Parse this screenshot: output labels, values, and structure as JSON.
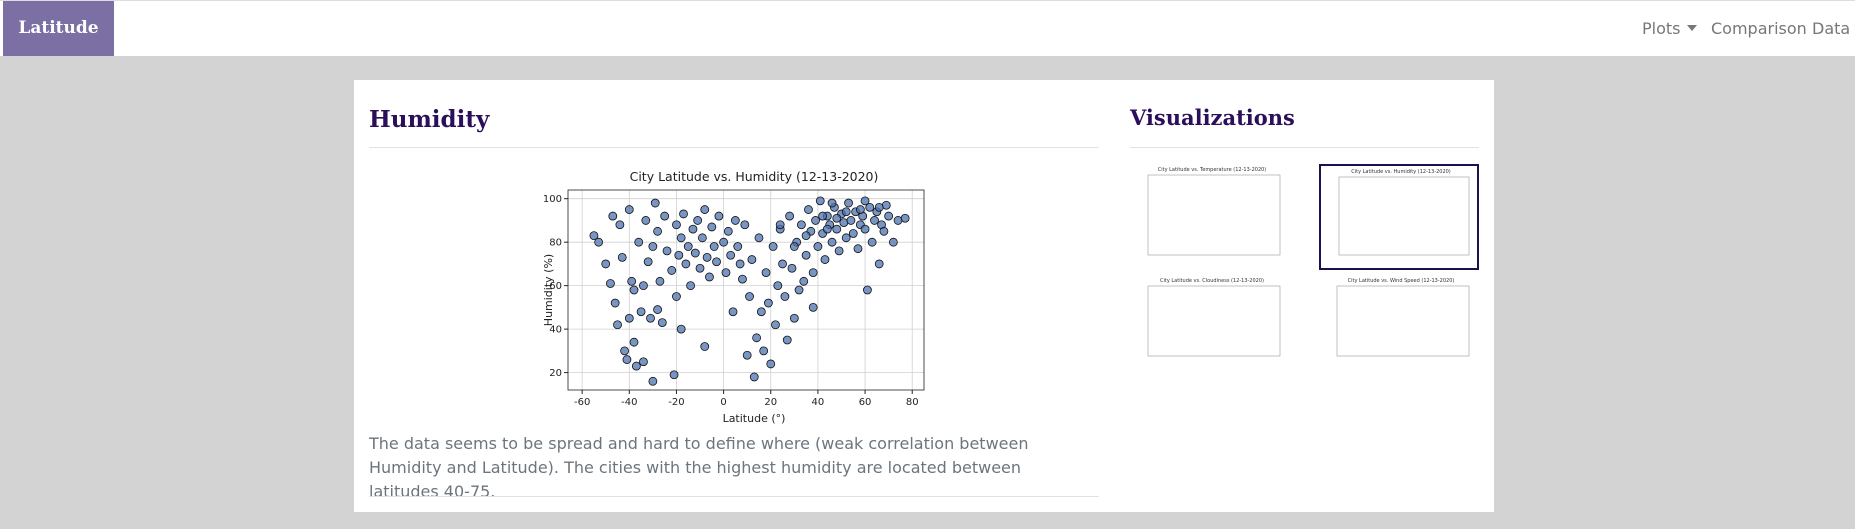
{
  "navbar": {
    "brand": "Latitude",
    "links": [
      "Plots",
      "Comparison",
      "Data"
    ]
  },
  "content": {
    "title": "Humidity",
    "description": "The data seems to be spread and hard to define where (weak correlation between Humidity and Latitude). The cities with the highest humidity are located between latitudes 40-75."
  },
  "chart_data": {
    "type": "scatter",
    "title": "City Latitude vs. Humidity (12-13-2020)",
    "x_label": "Latitude (°)",
    "y_label": "Humidity (%)",
    "color": "#4c72b0",
    "grid": true,
    "xlim": [
      -66,
      85
    ],
    "ylim": [
      12,
      104
    ],
    "xticks": [
      -60,
      -40,
      -20,
      0,
      20,
      40,
      60,
      80
    ],
    "yticks": [
      20,
      40,
      60,
      80,
      100
    ],
    "x": [
      -55,
      -53,
      -50,
      -48,
      -46,
      -45,
      -44,
      -43,
      -42,
      -41,
      -40,
      -40,
      -39,
      -38,
      -37,
      -36,
      -35,
      -34,
      -34,
      -33,
      -32,
      -31,
      -30,
      -30,
      -29,
      -28,
      -27,
      -26,
      -25,
      -24,
      -22,
      -21,
      -20,
      -20,
      -19,
      -18,
      -17,
      -16,
      -15,
      -14,
      -13,
      -12,
      -11,
      -10,
      -9,
      -8,
      -7,
      -6,
      -5,
      -4,
      -3,
      -2,
      0,
      1,
      2,
      3,
      4,
      5,
      6,
      7,
      8,
      9,
      10,
      11,
      12,
      13,
      14,
      15,
      16,
      17,
      18,
      19,
      20,
      21,
      22,
      23,
      24,
      25,
      26,
      27,
      28,
      29,
      30,
      31,
      32,
      33,
      34,
      35,
      36,
      37,
      38,
      39,
      40,
      41,
      42,
      43,
      44,
      45,
      46,
      47,
      48,
      49,
      50,
      51,
      52,
      53,
      54,
      55,
      56,
      57,
      58,
      59,
      60,
      61,
      62,
      63,
      64,
      65,
      66,
      67,
      68,
      69,
      70,
      72,
      74,
      77,
      -47,
      -38,
      -28,
      -18,
      -8,
      38,
      42,
      44,
      52,
      58,
      48,
      35,
      30,
      24,
      46,
      66,
      60
    ],
    "values": [
      83,
      80,
      70,
      61,
      52,
      42,
      88,
      73,
      30,
      26,
      95,
      45,
      62,
      34,
      23,
      80,
      48,
      60,
      25,
      90,
      71,
      45,
      16,
      78,
      98,
      85,
      62,
      43,
      92,
      76,
      67,
      19,
      88,
      55,
      74,
      82,
      93,
      70,
      78,
      60,
      86,
      75,
      90,
      68,
      82,
      95,
      73,
      64,
      87,
      78,
      71,
      92,
      80,
      66,
      85,
      74,
      48,
      90,
      78,
      70,
      63,
      88,
      28,
      55,
      72,
      18,
      36,
      82,
      48,
      30,
      66,
      52,
      24,
      78,
      42,
      60,
      86,
      70,
      55,
      35,
      92,
      68,
      45,
      80,
      58,
      88,
      62,
      74,
      95,
      85,
      66,
      90,
      78,
      99,
      84,
      72,
      92,
      88,
      80,
      96,
      86,
      76,
      93,
      89,
      82,
      98,
      90,
      84,
      94,
      77,
      88,
      92,
      86,
      58,
      96,
      80,
      90,
      94,
      70,
      88,
      85,
      97,
      92,
      80,
      90,
      91,
      92,
      58,
      49,
      40,
      32,
      50,
      92,
      86,
      94,
      95,
      91,
      83,
      78,
      88,
      98,
      96,
      99
    ]
  },
  "sidebar": {
    "title": "Visualizations",
    "thumbnails": [
      {
        "title": "City Latitude vs. Temperature (12-13-2020)"
      },
      {
        "title": "City Latitude vs. Humidity (12-13-2020)"
      },
      {
        "title": "City Latitude vs. Cloudiness (12-13-2020)"
      },
      {
        "title": "City Latitude vs. Wind Speed (12-13-2020)"
      }
    ]
  }
}
